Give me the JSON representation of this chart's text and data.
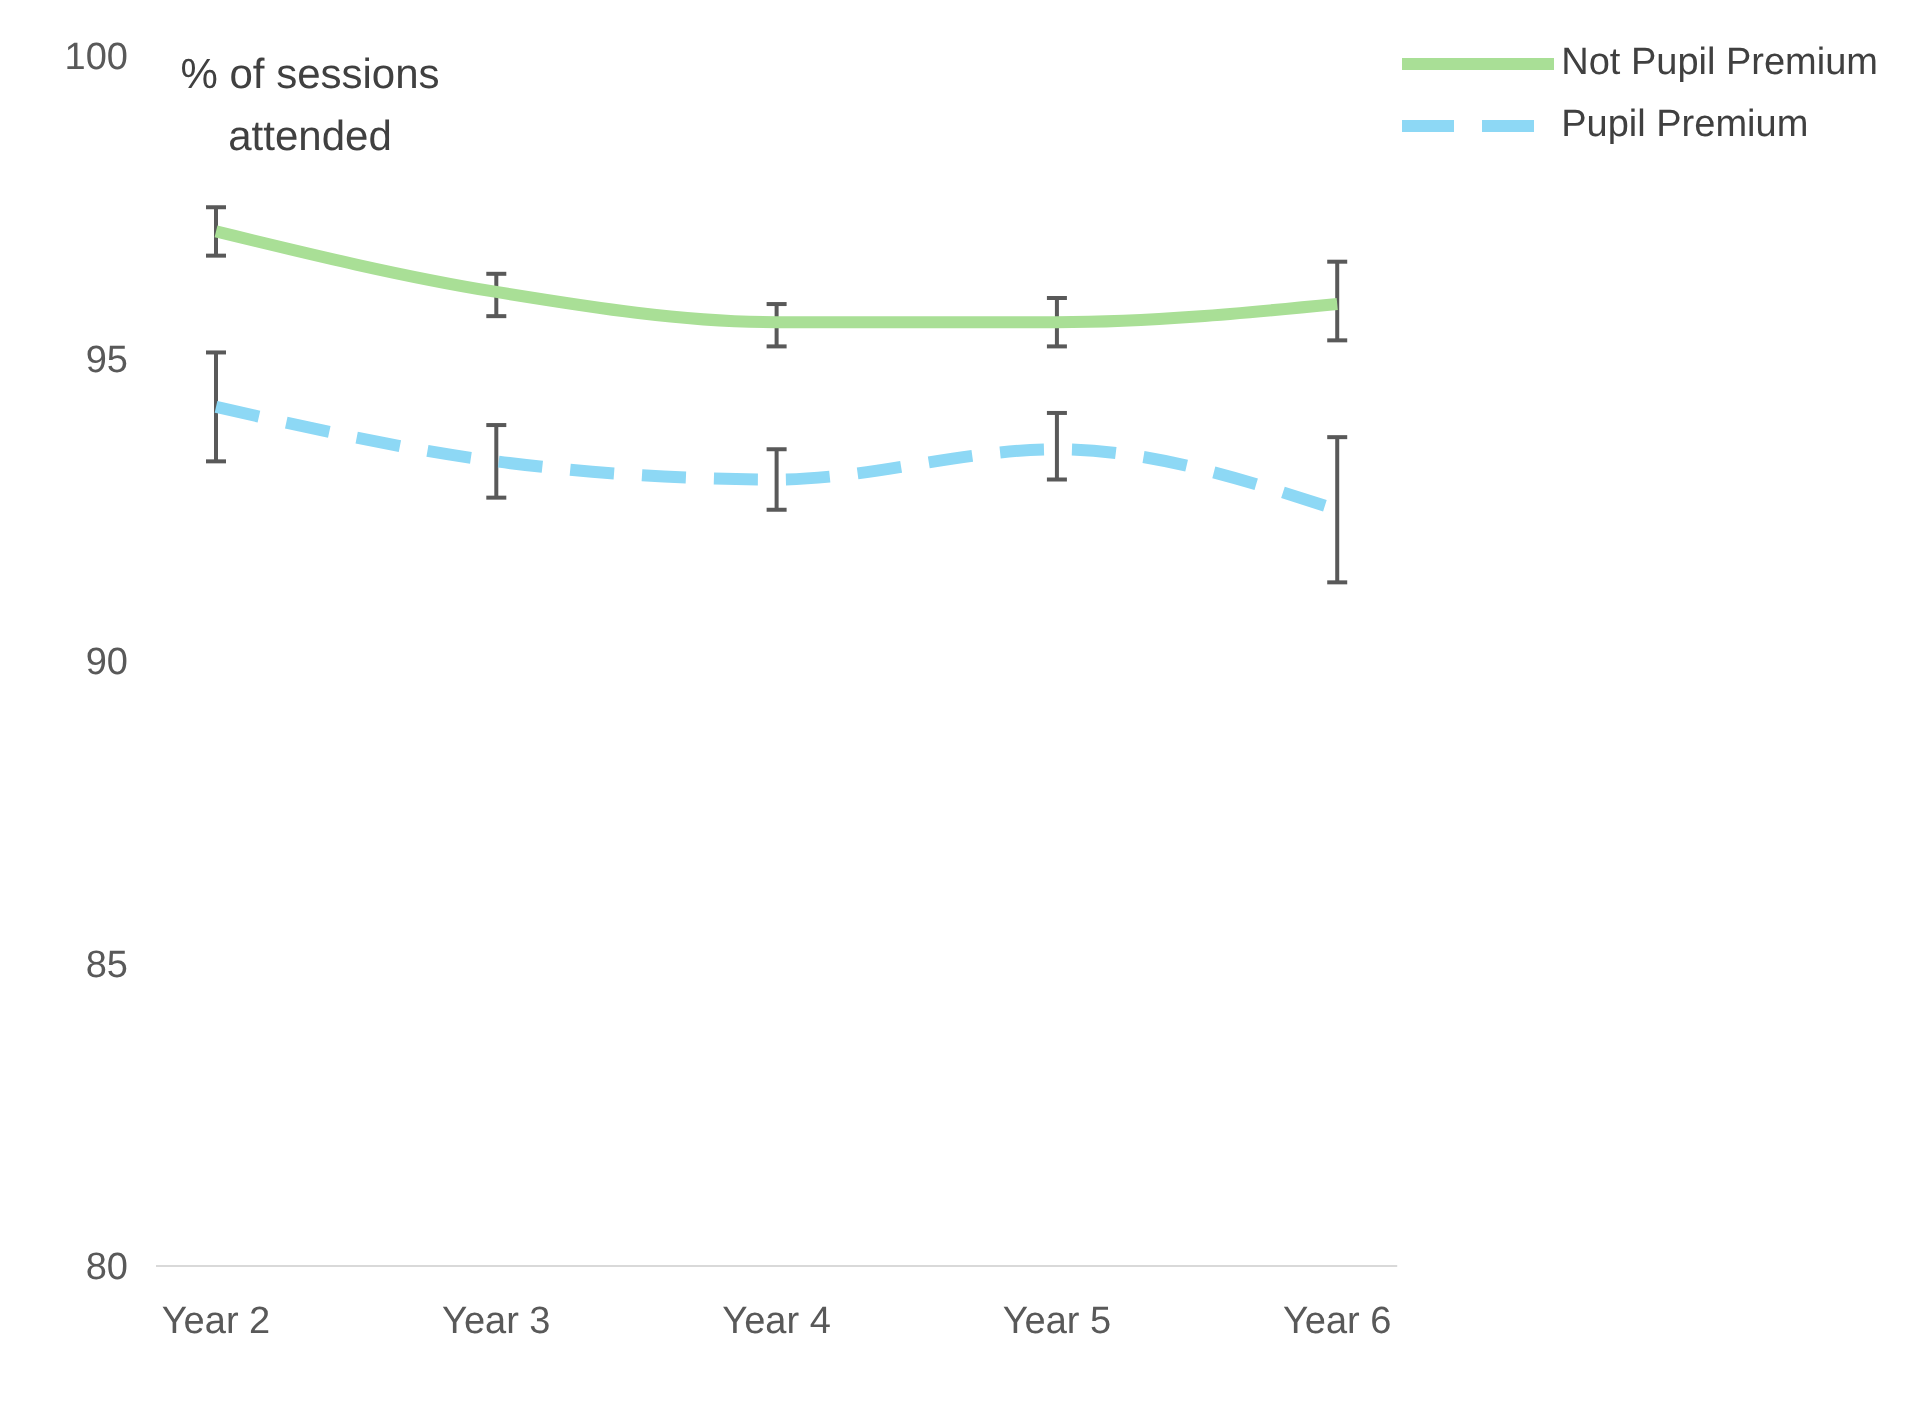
{
  "chart_data": {
    "type": "line",
    "ylabel": "% of sessions attended",
    "categories": [
      "Year 2",
      "Year 3",
      "Year 4",
      "Year 5",
      "Year 6"
    ],
    "ylim": [
      80,
      100
    ],
    "yticks": [
      80,
      85,
      90,
      95,
      100
    ],
    "grid": false,
    "legend": "top right",
    "marker": "none",
    "series": [
      {
        "name": "Not Pupil Premium",
        "color": "#a9df96",
        "line_style": "solid",
        "values": [
          97.1,
          96.1,
          95.6,
          95.6,
          95.9
        ],
        "errors": [
          [
            96.7,
            97.5
          ],
          [
            95.7,
            96.4
          ],
          [
            95.2,
            95.9
          ],
          [
            95.2,
            96.0
          ],
          [
            95.3,
            96.6
          ]
        ]
      },
      {
        "name": "Pupil Premium",
        "color": "#8dd8f5",
        "line_style": "dashed",
        "values": [
          94.2,
          93.3,
          93.0,
          93.5,
          92.5
        ],
        "errors": [
          [
            93.3,
            95.1
          ],
          [
            92.7,
            93.9
          ],
          [
            92.5,
            93.5
          ],
          [
            93.0,
            94.1
          ],
          [
            91.3,
            93.7
          ]
        ]
      }
    ]
  }
}
